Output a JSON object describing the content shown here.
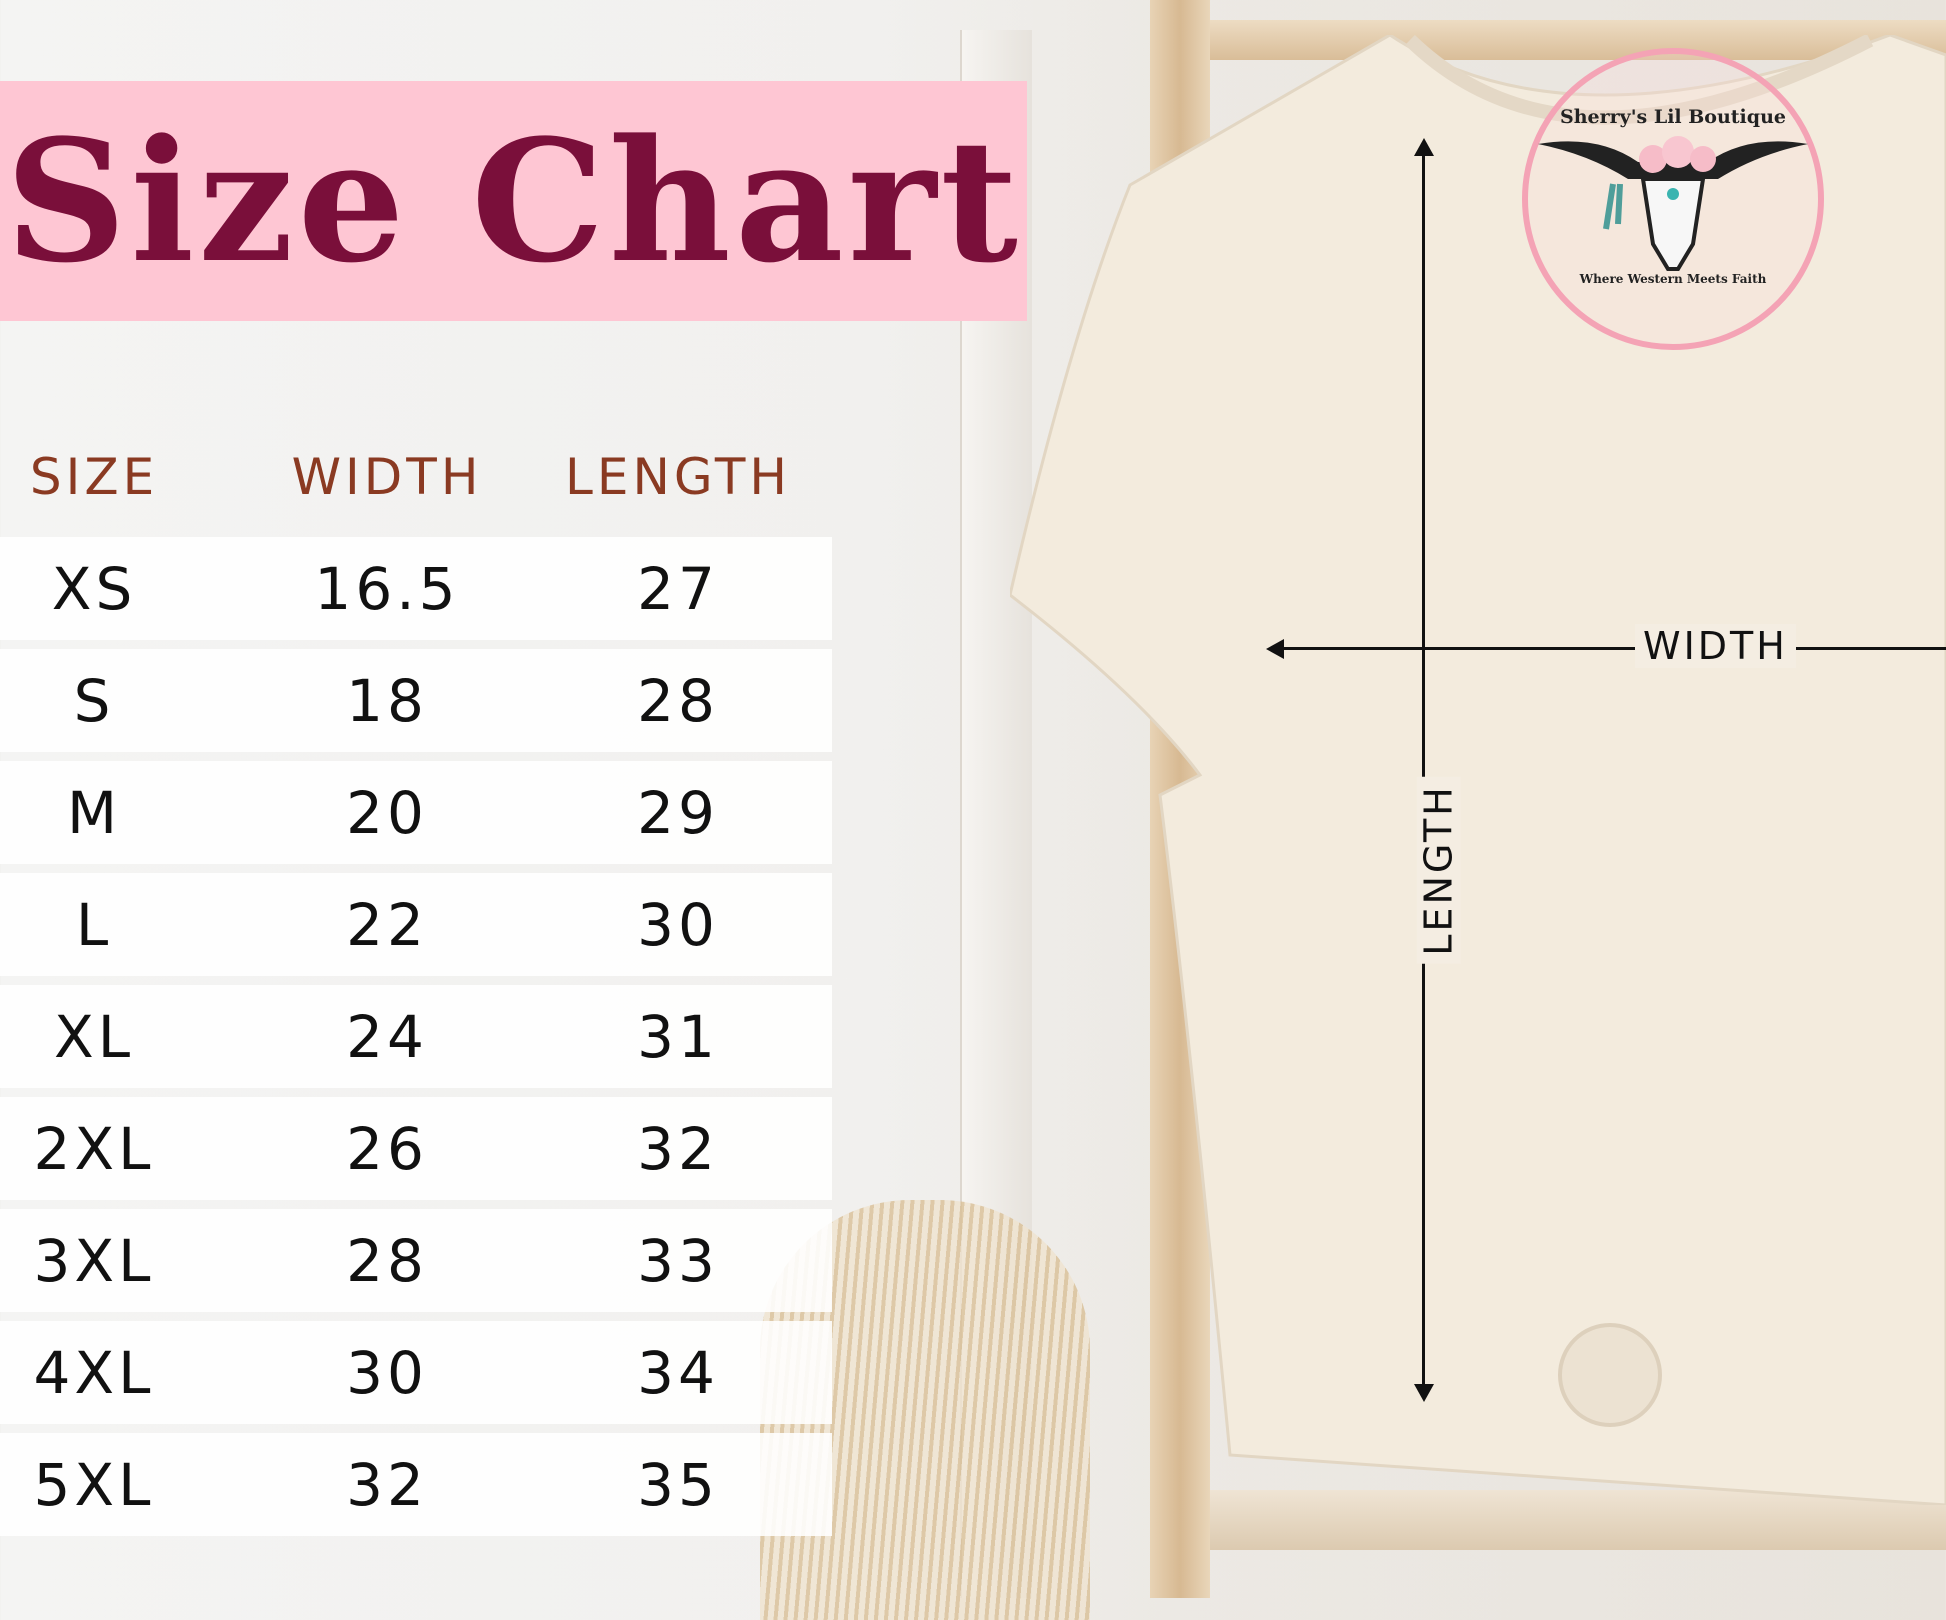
{
  "title": "Size Chart",
  "table": {
    "headers": [
      "SIZE",
      "WIDTH",
      "LENGTH"
    ],
    "rows": [
      [
        "XS",
        "16.5",
        "27"
      ],
      [
        "S",
        "18",
        "28"
      ],
      [
        "M",
        "20",
        "29"
      ],
      [
        "L",
        "22",
        "30"
      ],
      [
        "XL",
        "24",
        "31"
      ],
      [
        "2XL",
        "26",
        "32"
      ],
      [
        "3XL",
        "28",
        "33"
      ],
      [
        "4XL",
        "30",
        "34"
      ],
      [
        "5XL",
        "32",
        "35"
      ]
    ]
  },
  "diagram": {
    "width_label": "WIDTH",
    "length_label": "LENGTH"
  },
  "logo": {
    "name": "Sherry's Lil Boutique",
    "tagline": "Where Western Meets Faith"
  },
  "colors": {
    "title_bg": "#fec6d3",
    "title_text": "#7a0f3a",
    "header_text": "#8a3a22",
    "logo_ring": "#f4a3b5"
  }
}
